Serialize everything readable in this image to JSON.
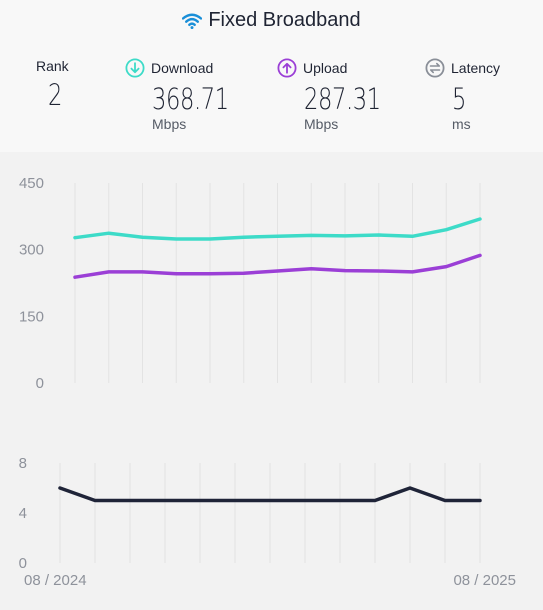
{
  "header": {
    "title": "Fixed Broadband",
    "icon": "wifi-icon",
    "accent_color": "#1a8fd8"
  },
  "metrics": {
    "rank": {
      "label": "Rank",
      "value": "2"
    },
    "download": {
      "label": "Download",
      "value": "368.71",
      "unit": "Mbps",
      "icon": "download-arrow-icon",
      "color": "#3ddbc8"
    },
    "upload": {
      "label": "Upload",
      "value": "287.31",
      "unit": "Mbps",
      "icon": "upload-arrow-icon",
      "color": "#9b3fd6"
    },
    "latency": {
      "label": "Latency",
      "value": "5",
      "unit": "ms",
      "icon": "latency-icon",
      "color": "#8a8f98"
    }
  },
  "chart_data": [
    {
      "type": "line",
      "x": [
        "08 / 2024",
        "09 / 2024",
        "10 / 2024",
        "11 / 2024",
        "12 / 2024",
        "01 / 2025",
        "02 / 2025",
        "03 / 2025",
        "04 / 2025",
        "05 / 2025",
        "06 / 2025",
        "07 / 2025",
        "08 / 2025"
      ],
      "xtick_labels": [
        "08 / 2024",
        "08 / 2025"
      ],
      "ylim": [
        0,
        450
      ],
      "yticks": [
        0,
        150,
        300,
        450
      ],
      "grid": true,
      "series": [
        {
          "name": "Download",
          "color": "#3ddbc8",
          "values": [
            327,
            337,
            328,
            324,
            324,
            328,
            330,
            332,
            331,
            333,
            330,
            345,
            369
          ]
        },
        {
          "name": "Upload",
          "color": "#9b3fd6",
          "values": [
            238,
            250,
            250,
            246,
            246,
            247,
            252,
            257,
            253,
            252,
            250,
            262,
            287
          ]
        }
      ]
    },
    {
      "type": "line",
      "x": [
        "08 / 2024",
        "09 / 2024",
        "10 / 2024",
        "11 / 2024",
        "12 / 2024",
        "01 / 2025",
        "02 / 2025",
        "03 / 2025",
        "04 / 2025",
        "05 / 2025",
        "06 / 2025",
        "07 / 2025",
        "08 / 2025"
      ],
      "xtick_labels": [
        "08 / 2024",
        "08 / 2025"
      ],
      "ylim": [
        0,
        8
      ],
      "yticks": [
        0,
        4,
        8
      ],
      "grid": true,
      "series": [
        {
          "name": "Latency",
          "color": "#1f2438",
          "values": [
            6,
            5,
            5,
            5,
            5,
            5,
            5,
            5,
            5,
            5,
            6,
            5,
            5
          ]
        }
      ]
    }
  ]
}
